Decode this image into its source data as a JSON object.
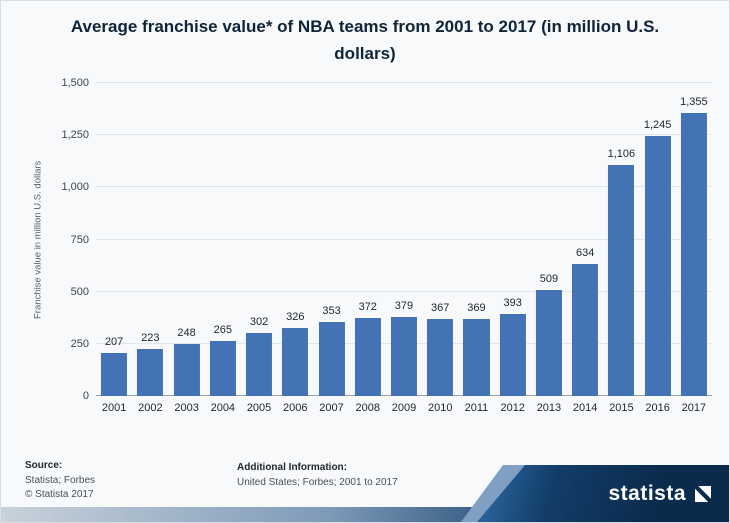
{
  "chart_data": {
    "type": "bar",
    "title": "Average franchise value* of NBA teams from 2001 to 2017 (in million U.S. dollars)",
    "categories": [
      "2001",
      "2002",
      "2003",
      "2004",
      "2005",
      "2006",
      "2007",
      "2008",
      "2009",
      "2010",
      "2011",
      "2012",
      "2013",
      "2014",
      "2015",
      "2016",
      "2017"
    ],
    "values": [
      207,
      223,
      248,
      265,
      302,
      326,
      353,
      372,
      379,
      367,
      369,
      393,
      509,
      634,
      1106,
      1245,
      1355
    ],
    "value_labels": [
      "207",
      "223",
      "248",
      "265",
      "302",
      "326",
      "353",
      "372",
      "379",
      "367",
      "369",
      "393",
      "509",
      "634",
      "1,106",
      "1,245",
      "1,355"
    ],
    "xlabel": "",
    "ylabel": "Franchise value in million U.S. dollars",
    "ylim": [
      0,
      1500
    ],
    "y_tick_values": [
      0,
      250,
      500,
      750,
      1000,
      1250,
      1500
    ],
    "y_tick_labels": [
      "0",
      "250",
      "500",
      "750",
      "1,000",
      "1,250",
      "1,500"
    ],
    "grid": true,
    "legend": false,
    "bar_color": "#4473b5"
  },
  "footer": {
    "source_label": "Source:",
    "source_value": "Statista; Forbes",
    "copyright": "© Statista 2017",
    "additional_label": "Additional Information:",
    "additional_value": "United States; Forbes; 2001 to 2017"
  },
  "logo": {
    "text": "statista"
  },
  "colors": {
    "bar": "#4473b5",
    "navy": "#0b2b4d",
    "background": "#f8f9fb"
  }
}
